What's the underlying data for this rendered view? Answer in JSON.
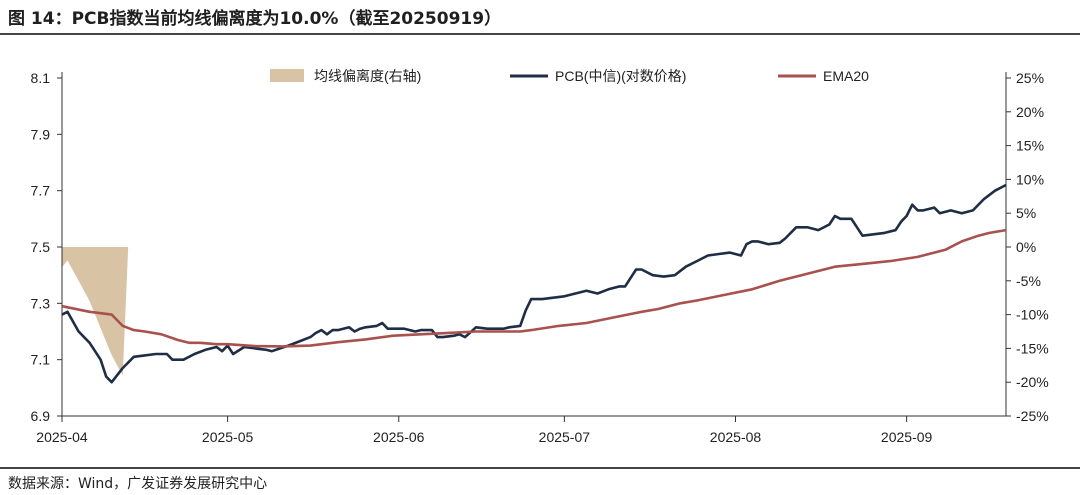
{
  "title": "图 14：PCB指数当前均线偏离度为10.0%（截至20250919）",
  "source": "数据来源：Wind，广发证券发展研究中心",
  "colors": {
    "area": "#d9c3a5",
    "pcb": "#1f2d45",
    "ema": "#a8514d",
    "axis": "#333333"
  },
  "chart_data": {
    "type": "line",
    "title": "PCB指数当前均线偏离度为10.0%（截至20250919）",
    "x_tick_labels": [
      "2025-04",
      "2025-05",
      "2025-06",
      "2025-07",
      "2025-08",
      "2025-09"
    ],
    "y_left": {
      "min": 6.9,
      "max": 8.1,
      "ticks": [
        8.1,
        7.9,
        7.7,
        7.5,
        7.3,
        7.1,
        6.9
      ],
      "tick_labels": [
        "8.1",
        "7.9",
        "7.7",
        "7.5",
        "7.3",
        "7.1",
        "6.9"
      ]
    },
    "y_right": {
      "min": -25,
      "max": 25,
      "ticks": [
        25,
        20,
        15,
        10,
        5,
        0,
        -5,
        -10,
        -15,
        -20,
        -25
      ],
      "tick_labels": [
        "25%",
        "20%",
        "15%",
        "10%",
        "5%",
        "0%",
        "-5%",
        "-10%",
        "-15%",
        "-20%",
        "-25%"
      ]
    },
    "legend": [
      "均线偏离度(右轴)",
      "PCB(中信)(对数价格)",
      "EMA20"
    ],
    "x_range_days": [
      0,
      171
    ],
    "series": [
      {
        "name": "PCB(中信)(对数价格)",
        "axis": "left",
        "points": [
          [
            0,
            7.26
          ],
          [
            1,
            7.27
          ],
          [
            3,
            7.2
          ],
          [
            5,
            7.16
          ],
          [
            7,
            7.1
          ],
          [
            8,
            7.04
          ],
          [
            9,
            7.02
          ],
          [
            11,
            7.07
          ],
          [
            13,
            7.11
          ],
          [
            15,
            7.115
          ],
          [
            17,
            7.12
          ],
          [
            19,
            7.12
          ],
          [
            20,
            7.1
          ],
          [
            22,
            7.1
          ],
          [
            24,
            7.12
          ],
          [
            26,
            7.135
          ],
          [
            28,
            7.145
          ],
          [
            29,
            7.13
          ],
          [
            30,
            7.15
          ],
          [
            31,
            7.12
          ],
          [
            33,
            7.145
          ],
          [
            35,
            7.14
          ],
          [
            37,
            7.135
          ],
          [
            38,
            7.13
          ],
          [
            41,
            7.15
          ],
          [
            43,
            7.165
          ],
          [
            45,
            7.18
          ],
          [
            46,
            7.195
          ],
          [
            47,
            7.205
          ],
          [
            48,
            7.19
          ],
          [
            49,
            7.205
          ],
          [
            50,
            7.205
          ],
          [
            52,
            7.215
          ],
          [
            53,
            7.2
          ],
          [
            54,
            7.21
          ],
          [
            55,
            7.215
          ],
          [
            57,
            7.22
          ],
          [
            58,
            7.23
          ],
          [
            59,
            7.21
          ],
          [
            60,
            7.21
          ],
          [
            62,
            7.21
          ],
          [
            64,
            7.2
          ],
          [
            65,
            7.205
          ],
          [
            67,
            7.205
          ],
          [
            68,
            7.18
          ],
          [
            69,
            7.18
          ],
          [
            71,
            7.185
          ],
          [
            72,
            7.19
          ],
          [
            73,
            7.18
          ],
          [
            75,
            7.215
          ],
          [
            77,
            7.21
          ],
          [
            80,
            7.21
          ],
          [
            81,
            7.215
          ],
          [
            83,
            7.22
          ],
          [
            84,
            7.275
          ],
          [
            85,
            7.315
          ],
          [
            87,
            7.315
          ],
          [
            89,
            7.32
          ],
          [
            91,
            7.325
          ],
          [
            93,
            7.335
          ],
          [
            95,
            7.345
          ],
          [
            97,
            7.335
          ],
          [
            99,
            7.35
          ],
          [
            101,
            7.36
          ],
          [
            102,
            7.36
          ],
          [
            104,
            7.42
          ],
          [
            105,
            7.42
          ],
          [
            107,
            7.4
          ],
          [
            109,
            7.395
          ],
          [
            111,
            7.4
          ],
          [
            113,
            7.43
          ],
          [
            115,
            7.45
          ],
          [
            117,
            7.47
          ],
          [
            119,
            7.475
          ],
          [
            121,
            7.48
          ],
          [
            123,
            7.47
          ],
          [
            124,
            7.51
          ],
          [
            125,
            7.52
          ],
          [
            126,
            7.52
          ],
          [
            128,
            7.51
          ],
          [
            130,
            7.515
          ],
          [
            131,
            7.53
          ],
          [
            133,
            7.57
          ],
          [
            135,
            7.57
          ],
          [
            137,
            7.56
          ],
          [
            139,
            7.58
          ],
          [
            140,
            7.61
          ],
          [
            141,
            7.6
          ],
          [
            143,
            7.6
          ],
          [
            145,
            7.54
          ],
          [
            147,
            7.545
          ],
          [
            149,
            7.55
          ],
          [
            151,
            7.56
          ],
          [
            152,
            7.59
          ],
          [
            153,
            7.61
          ],
          [
            154,
            7.65
          ],
          [
            155,
            7.63
          ],
          [
            156,
            7.63
          ],
          [
            158,
            7.64
          ],
          [
            159,
            7.62
          ],
          [
            161,
            7.63
          ],
          [
            163,
            7.62
          ],
          [
            165,
            7.63
          ],
          [
            167,
            7.67
          ],
          [
            169,
            7.7
          ],
          [
            171,
            7.72
          ]
        ]
      },
      {
        "name": "EMA20",
        "axis": "left",
        "points": [
          [
            0,
            7.29
          ],
          [
            5,
            7.27
          ],
          [
            9,
            7.26
          ],
          [
            11,
            7.22
          ],
          [
            13,
            7.205
          ],
          [
            15,
            7.2
          ],
          [
            18,
            7.19
          ],
          [
            21,
            7.17
          ],
          [
            23,
            7.16
          ],
          [
            25,
            7.16
          ],
          [
            28,
            7.155
          ],
          [
            30,
            7.155
          ],
          [
            35,
            7.148
          ],
          [
            40,
            7.147
          ],
          [
            45,
            7.15
          ],
          [
            50,
            7.162
          ],
          [
            55,
            7.172
          ],
          [
            60,
            7.185
          ],
          [
            65,
            7.19
          ],
          [
            70,
            7.195
          ],
          [
            75,
            7.2
          ],
          [
            80,
            7.2
          ],
          [
            83,
            7.2
          ],
          [
            85,
            7.205
          ],
          [
            90,
            7.22
          ],
          [
            95,
            7.23
          ],
          [
            100,
            7.25
          ],
          [
            105,
            7.27
          ],
          [
            108,
            7.28
          ],
          [
            112,
            7.3
          ],
          [
            115,
            7.31
          ],
          [
            120,
            7.33
          ],
          [
            125,
            7.35
          ],
          [
            130,
            7.38
          ],
          [
            135,
            7.405
          ],
          [
            140,
            7.43
          ],
          [
            145,
            7.44
          ],
          [
            150,
            7.45
          ],
          [
            155,
            7.465
          ],
          [
            160,
            7.49
          ],
          [
            163,
            7.52
          ],
          [
            166,
            7.54
          ],
          [
            168,
            7.55
          ],
          [
            171,
            7.56
          ]
        ]
      },
      {
        "name": "均线偏离度(右轴)",
        "axis": "right",
        "type": "area",
        "points": [
          [
            0,
            -3
          ],
          [
            1,
            -2
          ],
          [
            3,
            -5
          ],
          [
            5,
            -8
          ],
          [
            7,
            -12
          ],
          [
            9,
            -16
          ],
          [
            11,
            -19
          ],
          [
            12,
            0
          ]
        ]
      }
    ]
  }
}
